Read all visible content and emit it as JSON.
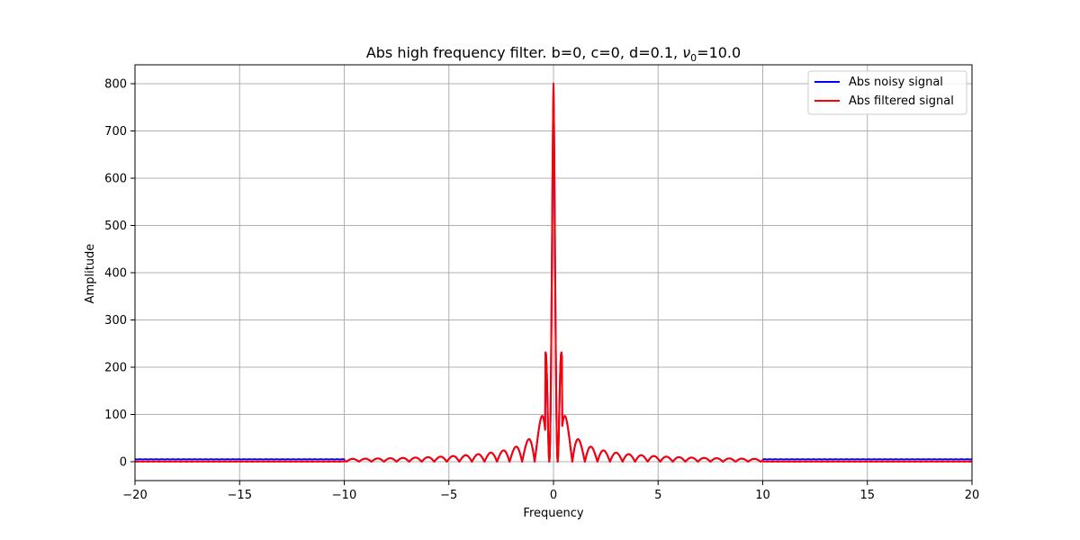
{
  "chart_data": {
    "type": "line",
    "title_main": "Abs high frequency filter. b=0, c=0, d=0.1, ",
    "title_nu": "ν",
    "title_sub": "0",
    "title_end": "=10.0",
    "xlabel": "Frequency",
    "ylabel": "Amplitude",
    "xlim": [
      -20,
      20
    ],
    "ylim": [
      -40,
      840
    ],
    "xticks": [
      -20,
      -15,
      -10,
      -5,
      0,
      5,
      10,
      15,
      20
    ],
    "xtick_labels": [
      "−20",
      "−15",
      "−10",
      "−5",
      "0",
      "5",
      "10",
      "15",
      "20"
    ],
    "yticks": [
      0,
      100,
      200,
      300,
      400,
      500,
      600,
      700,
      800
    ],
    "ytick_labels": [
      "0",
      "100",
      "200",
      "300",
      "400",
      "500",
      "600",
      "700",
      "800"
    ],
    "grid": true,
    "legend_position": "top-right",
    "series": [
      {
        "name": "Abs noisy signal",
        "color": "#0000ff",
        "peak": 800,
        "step": 0.1,
        "cutoff": 10.0,
        "outer_level": 4.5
      },
      {
        "name": "Abs filtered signal",
        "color": "#ff0000",
        "peak": 800,
        "step": 0.1,
        "cutoff": 10.0,
        "outer_level": 0
      }
    ],
    "outer_band": [
      -20,
      -10,
      10,
      20
    ],
    "center": 0
  }
}
